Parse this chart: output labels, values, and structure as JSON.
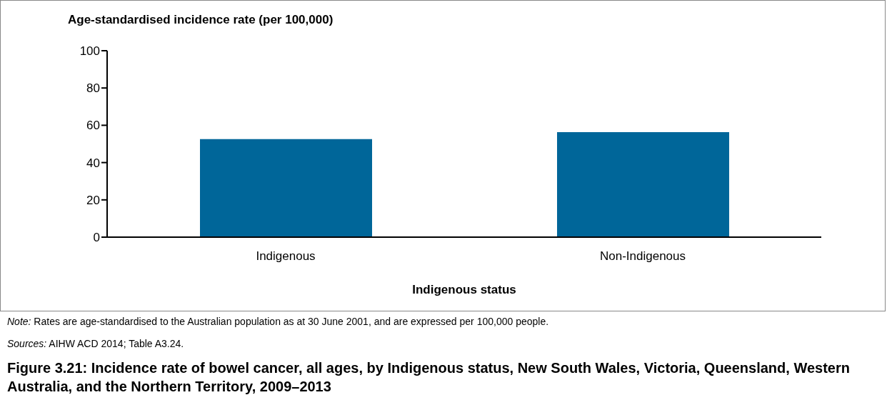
{
  "chart_data": {
    "type": "bar",
    "title": "Figure 3.21: Incidence rate of bowel cancer, all ages, by Indigenous status, New South Wales, Victoria, Queensland, Western Australia, and the Northern Territory, 2009–2013",
    "ylabel": "Age-standardised incidence rate (per 100,000)",
    "xlabel": "Indigenous status",
    "categories": [
      "Indigenous",
      "Non-Indigenous"
    ],
    "values": [
      52.6,
      56.3
    ],
    "color": "#006699",
    "ylim": [
      0,
      100
    ],
    "yticks": [
      0,
      20,
      40,
      60,
      80,
      100
    ],
    "grid": false,
    "annotations": [
      "Note: Rates are age-standardised to the Australian population as at 30 June 2001, and are expressed per 100,000 people.",
      "Sources: AIHW ACD 2014; Table A3.24."
    ]
  }
}
